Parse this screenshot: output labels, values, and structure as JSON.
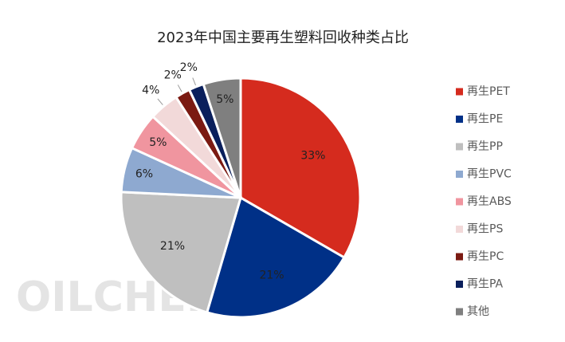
{
  "chart_data": {
    "type": "pie",
    "title": "2023年中国主要再生塑料回收种类占比",
    "watermark": "OILCHEM",
    "categories": [
      "再生PET",
      "再生PE",
      "再生PP",
      "再生PVC",
      "再生ABS",
      "再生PS",
      "再生PC",
      "再生PA",
      "其他"
    ],
    "values": [
      33,
      21,
      21,
      6,
      5,
      4,
      2,
      2,
      5
    ],
    "value_labels": [
      "33%",
      "21%",
      "21%",
      "6%",
      "5%",
      "4%",
      "2%",
      "2%",
      "5%"
    ],
    "colors": [
      "#d52b1e",
      "#003087",
      "#bfbfbf",
      "#8ea9d0",
      "#f0959f",
      "#f2d9d9",
      "#7b1a12",
      "#0a1f5c",
      "#7f7f7f"
    ],
    "legend": "right"
  }
}
